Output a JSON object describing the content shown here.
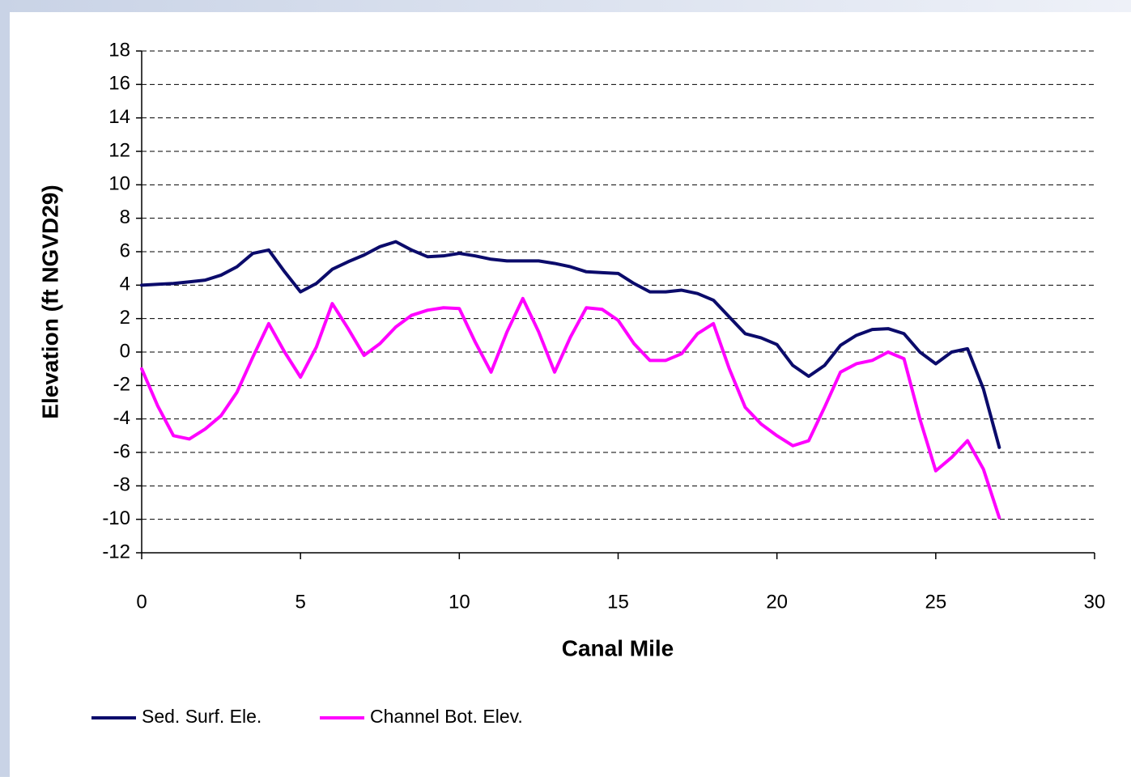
{
  "chart_data": {
    "type": "line",
    "xlabel": "Canal Mile",
    "ylabel": "Elevation (ft NGVD29)",
    "xlim": [
      0,
      30
    ],
    "xticks": [
      0,
      5,
      10,
      15,
      20,
      25,
      30
    ],
    "ylim": [
      -12,
      18
    ],
    "yticks": [
      -12,
      -10,
      -8,
      -6,
      -4,
      -2,
      0,
      2,
      4,
      6,
      8,
      10,
      12,
      14,
      16,
      18
    ],
    "grid": true,
    "legend": "bottom",
    "x": [
      0,
      0.5,
      1,
      1.5,
      2,
      2.5,
      3,
      3.5,
      4,
      4.5,
      5,
      5.5,
      6,
      6.5,
      7,
      7.5,
      8,
      8.5,
      9,
      9.5,
      10,
      10.5,
      11,
      11.5,
      12,
      12.5,
      13,
      13.5,
      14,
      14.5,
      15,
      15.5,
      16,
      16.5,
      17,
      17.5,
      18,
      18.5,
      19,
      19.5,
      20,
      20.5,
      21,
      21.5,
      22,
      22.5,
      23,
      23.5,
      24,
      24.5,
      25,
      25.5,
      26,
      26.5,
      27
    ],
    "series": [
      {
        "name": "Sed. Surf. Ele.",
        "color": "#0b0b6b",
        "values": [
          4.0,
          4.05,
          4.1,
          4.2,
          4.3,
          4.6,
          5.1,
          5.9,
          6.1,
          4.8,
          3.6,
          4.1,
          4.95,
          5.4,
          5.8,
          6.3,
          6.6,
          6.1,
          5.7,
          5.75,
          5.9,
          5.75,
          5.55,
          5.45,
          5.45,
          5.45,
          5.3,
          5.1,
          4.8,
          4.75,
          4.7,
          4.1,
          3.6,
          3.6,
          3.7,
          3.5,
          3.1,
          2.1,
          1.1,
          0.85,
          0.45,
          -0.8,
          -1.45,
          -0.8,
          0.4,
          1.0,
          1.35,
          1.4,
          1.1,
          0.0,
          -0.7,
          0.0,
          0.2,
          -2.2,
          -5.7
        ]
      },
      {
        "name": "Channel Bot. Elev.",
        "color": "#ff00ff",
        "values": [
          -1.0,
          -3.2,
          -5.0,
          -5.2,
          -4.6,
          -3.8,
          -2.4,
          -0.3,
          1.7,
          0.0,
          -1.5,
          0.3,
          2.9,
          1.4,
          -0.2,
          0.5,
          1.5,
          2.2,
          2.5,
          2.65,
          2.6,
          0.6,
          -1.2,
          1.2,
          3.2,
          1.2,
          -1.2,
          0.9,
          2.65,
          2.55,
          1.9,
          0.5,
          -0.5,
          -0.5,
          -0.1,
          1.1,
          1.7,
          -1.0,
          -3.3,
          -4.3,
          -5.0,
          -5.6,
          -5.3,
          -3.3,
          -1.2,
          -0.7,
          -0.5,
          0.0,
          -0.4,
          -4.0,
          -7.1,
          -6.3,
          -5.3,
          -7.0,
          -9.9
        ]
      }
    ]
  }
}
